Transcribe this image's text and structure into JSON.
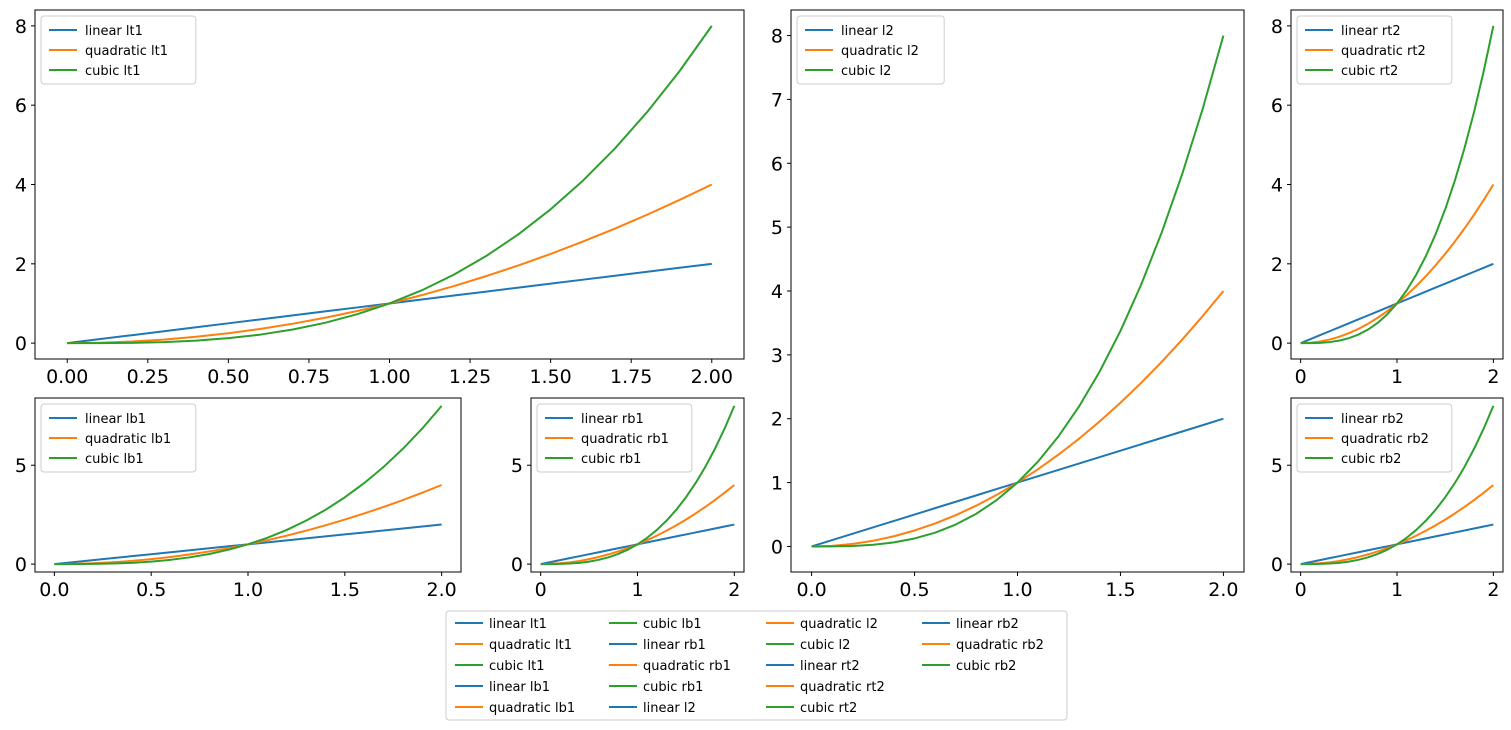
{
  "colors": {
    "linear": "#1f77b4",
    "quadratic": "#ff7f0e",
    "cubic": "#2ca02c"
  },
  "chart_data": [
    {
      "id": "lt1",
      "type": "line",
      "xlim": [
        -0.1,
        2.1
      ],
      "ylim": [
        -0.4,
        8.4
      ],
      "x_ticks": [
        0.0,
        0.25,
        0.5,
        0.75,
        1.0,
        1.25,
        1.5,
        1.75,
        2.0
      ],
      "x_tick_labels": [
        "0.00",
        "0.25",
        "0.50",
        "0.75",
        "1.00",
        "1.25",
        "1.50",
        "1.75",
        "2.00"
      ],
      "y_ticks": [
        0,
        2,
        4,
        6,
        8
      ],
      "y_tick_labels": [
        "0",
        "2",
        "4",
        "6",
        "8"
      ],
      "x": [
        0.0,
        0.1,
        0.2,
        0.3,
        0.4,
        0.5,
        0.6,
        0.7,
        0.8,
        0.9,
        1.0,
        1.1,
        1.2,
        1.3,
        1.4,
        1.5,
        1.6,
        1.7,
        1.8,
        1.9,
        2.0
      ],
      "legend_position": "upper-left",
      "series": [
        {
          "name": "linear lt1",
          "color": "#1f77b4",
          "values": [
            0.0,
            0.1,
            0.2,
            0.3,
            0.4,
            0.5,
            0.6,
            0.7,
            0.8,
            0.9,
            1.0,
            1.1,
            1.2,
            1.3,
            1.4,
            1.5,
            1.6,
            1.7,
            1.8,
            1.9,
            2.0
          ]
        },
        {
          "name": "quadratic lt1",
          "color": "#ff7f0e",
          "values": [
            0.0,
            0.01,
            0.04,
            0.09,
            0.16,
            0.25,
            0.36,
            0.49,
            0.64,
            0.81,
            1.0,
            1.21,
            1.44,
            1.69,
            1.96,
            2.25,
            2.56,
            2.89,
            3.24,
            3.61,
            4.0
          ]
        },
        {
          "name": "cubic lt1",
          "color": "#2ca02c",
          "values": [
            0.0,
            0.001,
            0.008,
            0.027,
            0.064,
            0.125,
            0.216,
            0.343,
            0.512,
            0.729,
            1.0,
            1.331,
            1.728,
            2.197,
            2.744,
            3.375,
            4.096,
            4.913,
            5.832,
            6.859,
            8.0
          ]
        }
      ]
    },
    {
      "id": "lb1",
      "type": "line",
      "xlim": [
        -0.1,
        2.1
      ],
      "ylim": [
        -0.4,
        8.4
      ],
      "x_ticks": [
        0.0,
        0.5,
        1.0,
        1.5,
        2.0
      ],
      "x_tick_labels": [
        "0.0",
        "0.5",
        "1.0",
        "1.5",
        "2.0"
      ],
      "y_ticks": [
        0,
        5
      ],
      "y_tick_labels": [
        "0",
        "5"
      ],
      "x": [
        0.0,
        0.1,
        0.2,
        0.3,
        0.4,
        0.5,
        0.6,
        0.7,
        0.8,
        0.9,
        1.0,
        1.1,
        1.2,
        1.3,
        1.4,
        1.5,
        1.6,
        1.7,
        1.8,
        1.9,
        2.0
      ],
      "legend_position": "upper-left",
      "series": [
        {
          "name": "linear lb1",
          "color": "#1f77b4",
          "values": [
            0.0,
            0.1,
            0.2,
            0.3,
            0.4,
            0.5,
            0.6,
            0.7,
            0.8,
            0.9,
            1.0,
            1.1,
            1.2,
            1.3,
            1.4,
            1.5,
            1.6,
            1.7,
            1.8,
            1.9,
            2.0
          ]
        },
        {
          "name": "quadratic lb1",
          "color": "#ff7f0e",
          "values": [
            0.0,
            0.01,
            0.04,
            0.09,
            0.16,
            0.25,
            0.36,
            0.49,
            0.64,
            0.81,
            1.0,
            1.21,
            1.44,
            1.69,
            1.96,
            2.25,
            2.56,
            2.89,
            3.24,
            3.61,
            4.0
          ]
        },
        {
          "name": "cubic lb1",
          "color": "#2ca02c",
          "values": [
            0.0,
            0.001,
            0.008,
            0.027,
            0.064,
            0.125,
            0.216,
            0.343,
            0.512,
            0.729,
            1.0,
            1.331,
            1.728,
            2.197,
            2.744,
            3.375,
            4.096,
            4.913,
            5.832,
            6.859,
            8.0
          ]
        }
      ]
    },
    {
      "id": "rb1",
      "type": "line",
      "xlim": [
        -0.1,
        2.1
      ],
      "ylim": [
        -0.4,
        8.4
      ],
      "x_ticks": [
        0,
        1,
        2
      ],
      "x_tick_labels": [
        "0",
        "1",
        "2"
      ],
      "y_ticks": [
        0,
        5
      ],
      "y_tick_labels": [
        "0",
        "5"
      ],
      "x": [
        0.0,
        0.1,
        0.2,
        0.3,
        0.4,
        0.5,
        0.6,
        0.7,
        0.8,
        0.9,
        1.0,
        1.1,
        1.2,
        1.3,
        1.4,
        1.5,
        1.6,
        1.7,
        1.8,
        1.9,
        2.0
      ],
      "legend_position": "upper-left",
      "series": [
        {
          "name": "linear rb1",
          "color": "#1f77b4",
          "values": [
            0.0,
            0.1,
            0.2,
            0.3,
            0.4,
            0.5,
            0.6,
            0.7,
            0.8,
            0.9,
            1.0,
            1.1,
            1.2,
            1.3,
            1.4,
            1.5,
            1.6,
            1.7,
            1.8,
            1.9,
            2.0
          ]
        },
        {
          "name": "quadratic rb1",
          "color": "#ff7f0e",
          "values": [
            0.0,
            0.01,
            0.04,
            0.09,
            0.16,
            0.25,
            0.36,
            0.49,
            0.64,
            0.81,
            1.0,
            1.21,
            1.44,
            1.69,
            1.96,
            2.25,
            2.56,
            2.89,
            3.24,
            3.61,
            4.0
          ]
        },
        {
          "name": "cubic rb1",
          "color": "#2ca02c",
          "values": [
            0.0,
            0.001,
            0.008,
            0.027,
            0.064,
            0.125,
            0.216,
            0.343,
            0.512,
            0.729,
            1.0,
            1.331,
            1.728,
            2.197,
            2.744,
            3.375,
            4.096,
            4.913,
            5.832,
            6.859,
            8.0
          ]
        }
      ]
    },
    {
      "id": "l2",
      "type": "line",
      "xlim": [
        -0.1,
        2.1
      ],
      "ylim": [
        -0.4,
        8.4
      ],
      "x_ticks": [
        0.0,
        0.5,
        1.0,
        1.5,
        2.0
      ],
      "x_tick_labels": [
        "0.0",
        "0.5",
        "1.0",
        "1.5",
        "2.0"
      ],
      "y_ticks": [
        0,
        1,
        2,
        3,
        4,
        5,
        6,
        7,
        8
      ],
      "y_tick_labels": [
        "0",
        "1",
        "2",
        "3",
        "4",
        "5",
        "6",
        "7",
        "8"
      ],
      "x": [
        0.0,
        0.1,
        0.2,
        0.3,
        0.4,
        0.5,
        0.6,
        0.7,
        0.8,
        0.9,
        1.0,
        1.1,
        1.2,
        1.3,
        1.4,
        1.5,
        1.6,
        1.7,
        1.8,
        1.9,
        2.0
      ],
      "legend_position": "upper-left",
      "series": [
        {
          "name": "linear l2",
          "color": "#1f77b4",
          "values": [
            0.0,
            0.1,
            0.2,
            0.3,
            0.4,
            0.5,
            0.6,
            0.7,
            0.8,
            0.9,
            1.0,
            1.1,
            1.2,
            1.3,
            1.4,
            1.5,
            1.6,
            1.7,
            1.8,
            1.9,
            2.0
          ]
        },
        {
          "name": "quadratic l2",
          "color": "#ff7f0e",
          "values": [
            0.0,
            0.01,
            0.04,
            0.09,
            0.16,
            0.25,
            0.36,
            0.49,
            0.64,
            0.81,
            1.0,
            1.21,
            1.44,
            1.69,
            1.96,
            2.25,
            2.56,
            2.89,
            3.24,
            3.61,
            4.0
          ]
        },
        {
          "name": "cubic l2",
          "color": "#2ca02c",
          "values": [
            0.0,
            0.001,
            0.008,
            0.027,
            0.064,
            0.125,
            0.216,
            0.343,
            0.512,
            0.729,
            1.0,
            1.331,
            1.728,
            2.197,
            2.744,
            3.375,
            4.096,
            4.913,
            5.832,
            6.859,
            8.0
          ]
        }
      ]
    },
    {
      "id": "rt2",
      "type": "line",
      "xlim": [
        -0.1,
        2.1
      ],
      "ylim": [
        -0.4,
        8.4
      ],
      "x_ticks": [
        0,
        1,
        2
      ],
      "x_tick_labels": [
        "0",
        "1",
        "2"
      ],
      "y_ticks": [
        0,
        2,
        4,
        6,
        8
      ],
      "y_tick_labels": [
        "0",
        "2",
        "4",
        "6",
        "8"
      ],
      "x": [
        0.0,
        0.1,
        0.2,
        0.3,
        0.4,
        0.5,
        0.6,
        0.7,
        0.8,
        0.9,
        1.0,
        1.1,
        1.2,
        1.3,
        1.4,
        1.5,
        1.6,
        1.7,
        1.8,
        1.9,
        2.0
      ],
      "legend_position": "upper-left",
      "series": [
        {
          "name": "linear rt2",
          "color": "#1f77b4",
          "values": [
            0.0,
            0.1,
            0.2,
            0.3,
            0.4,
            0.5,
            0.6,
            0.7,
            0.8,
            0.9,
            1.0,
            1.1,
            1.2,
            1.3,
            1.4,
            1.5,
            1.6,
            1.7,
            1.8,
            1.9,
            2.0
          ]
        },
        {
          "name": "quadratic rt2",
          "color": "#ff7f0e",
          "values": [
            0.0,
            0.01,
            0.04,
            0.09,
            0.16,
            0.25,
            0.36,
            0.49,
            0.64,
            0.81,
            1.0,
            1.21,
            1.44,
            1.69,
            1.96,
            2.25,
            2.56,
            2.89,
            3.24,
            3.61,
            4.0
          ]
        },
        {
          "name": "cubic rt2",
          "color": "#2ca02c",
          "values": [
            0.0,
            0.001,
            0.008,
            0.027,
            0.064,
            0.125,
            0.216,
            0.343,
            0.512,
            0.729,
            1.0,
            1.331,
            1.728,
            2.197,
            2.744,
            3.375,
            4.096,
            4.913,
            5.832,
            6.859,
            8.0
          ]
        }
      ]
    },
    {
      "id": "rb2",
      "type": "line",
      "xlim": [
        -0.1,
        2.1
      ],
      "ylim": [
        -0.4,
        8.4
      ],
      "x_ticks": [
        0,
        1,
        2
      ],
      "x_tick_labels": [
        "0",
        "1",
        "2"
      ],
      "y_ticks": [
        0,
        5
      ],
      "y_tick_labels": [
        "0",
        "5"
      ],
      "x": [
        0.0,
        0.1,
        0.2,
        0.3,
        0.4,
        0.5,
        0.6,
        0.7,
        0.8,
        0.9,
        1.0,
        1.1,
        1.2,
        1.3,
        1.4,
        1.5,
        1.6,
        1.7,
        1.8,
        1.9,
        2.0
      ],
      "legend_position": "upper-left",
      "series": [
        {
          "name": "linear rb2",
          "color": "#1f77b4",
          "values": [
            0.0,
            0.1,
            0.2,
            0.3,
            0.4,
            0.5,
            0.6,
            0.7,
            0.8,
            0.9,
            1.0,
            1.1,
            1.2,
            1.3,
            1.4,
            1.5,
            1.6,
            1.7,
            1.8,
            1.9,
            2.0
          ]
        },
        {
          "name": "quadratic rb2",
          "color": "#ff7f0e",
          "values": [
            0.0,
            0.01,
            0.04,
            0.09,
            0.16,
            0.25,
            0.36,
            0.49,
            0.64,
            0.81,
            1.0,
            1.21,
            1.44,
            1.69,
            1.96,
            2.25,
            2.56,
            2.89,
            3.24,
            3.61,
            4.0
          ]
        },
        {
          "name": "cubic rb2",
          "color": "#2ca02c",
          "values": [
            0.0,
            0.001,
            0.008,
            0.027,
            0.064,
            0.125,
            0.216,
            0.343,
            0.512,
            0.729,
            1.0,
            1.331,
            1.728,
            2.197,
            2.744,
            3.375,
            4.096,
            4.913,
            5.832,
            6.859,
            8.0
          ]
        }
      ]
    }
  ],
  "figure_legend": {
    "position": "bottom-center",
    "columns": 4,
    "entries": [
      {
        "label": "linear lt1",
        "color": "#1f77b4"
      },
      {
        "label": "quadratic lt1",
        "color": "#ff7f0e"
      },
      {
        "label": "cubic lt1",
        "color": "#2ca02c"
      },
      {
        "label": "linear lb1",
        "color": "#1f77b4"
      },
      {
        "label": "quadratic lb1",
        "color": "#ff7f0e"
      },
      {
        "label": "cubic lb1",
        "color": "#2ca02c"
      },
      {
        "label": "linear rb1",
        "color": "#1f77b4"
      },
      {
        "label": "quadratic rb1",
        "color": "#ff7f0e"
      },
      {
        "label": "cubic rb1",
        "color": "#2ca02c"
      },
      {
        "label": "linear l2",
        "color": "#1f77b4"
      },
      {
        "label": "quadratic l2",
        "color": "#ff7f0e"
      },
      {
        "label": "cubic l2",
        "color": "#2ca02c"
      },
      {
        "label": "linear rt2",
        "color": "#1f77b4"
      },
      {
        "label": "quadratic rt2",
        "color": "#ff7f0e"
      },
      {
        "label": "cubic rt2",
        "color": "#2ca02c"
      },
      {
        "label": "linear rb2",
        "color": "#1f77b4"
      },
      {
        "label": "quadratic rb2",
        "color": "#ff7f0e"
      },
      {
        "label": "cubic rb2",
        "color": "#2ca02c"
      }
    ]
  }
}
